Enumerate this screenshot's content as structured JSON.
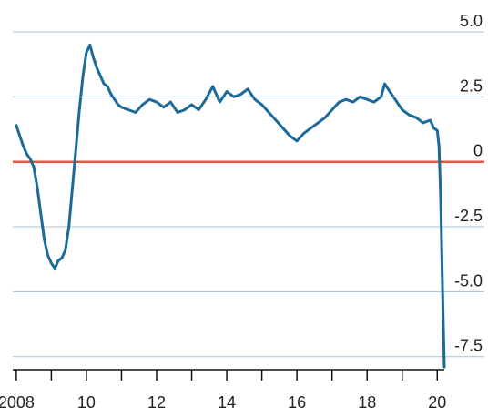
{
  "chart_data": {
    "type": "line",
    "title": "",
    "xlabel": "",
    "ylabel": "",
    "xlim": [
      2007.9,
      2020.2
    ],
    "ylim": [
      -8.0,
      5.0
    ],
    "grid": true,
    "legend": "none",
    "x_tick_labels": [
      {
        "x": 2008,
        "label": "2008"
      },
      {
        "x": 2010,
        "label": "10"
      },
      {
        "x": 2012,
        "label": "12"
      },
      {
        "x": 2014,
        "label": "14"
      },
      {
        "x": 2016,
        "label": "16"
      },
      {
        "x": 2018,
        "label": "18"
      },
      {
        "x": 2020,
        "label": "20"
      }
    ],
    "y_tick_labels": [
      {
        "y": 5.0,
        "label": "5.0"
      },
      {
        "y": 2.5,
        "label": "2.5"
      },
      {
        "y": 0,
        "label": "0"
      },
      {
        "y": -2.5,
        "label": "-2.5"
      },
      {
        "y": -5.0,
        "label": "-5.0"
      },
      {
        "y": -7.5,
        "label": "-7.5"
      }
    ],
    "reference_line": {
      "y": 0,
      "color": "#e8543f"
    },
    "series": [
      {
        "color": "#1b6a99",
        "points": [
          [
            2008.0,
            1.4
          ],
          [
            2008.1,
            1.0
          ],
          [
            2008.2,
            0.6
          ],
          [
            2008.3,
            0.3
          ],
          [
            2008.4,
            0.1
          ],
          [
            2008.5,
            -0.2
          ],
          [
            2008.6,
            -1.0
          ],
          [
            2008.7,
            -2.0
          ],
          [
            2008.8,
            -3.0
          ],
          [
            2008.9,
            -3.6
          ],
          [
            2009.0,
            -3.9
          ],
          [
            2009.1,
            -4.1
          ],
          [
            2009.2,
            -3.8
          ],
          [
            2009.3,
            -3.7
          ],
          [
            2009.4,
            -3.4
          ],
          [
            2009.5,
            -2.5
          ],
          [
            2009.6,
            -1.0
          ],
          [
            2009.7,
            0.5
          ],
          [
            2009.8,
            2.0
          ],
          [
            2009.9,
            3.3
          ],
          [
            2010.0,
            4.2
          ],
          [
            2010.1,
            4.5
          ],
          [
            2010.2,
            4.0
          ],
          [
            2010.3,
            3.6
          ],
          [
            2010.4,
            3.3
          ],
          [
            2010.5,
            3.0
          ],
          [
            2010.6,
            2.9
          ],
          [
            2010.7,
            2.6
          ],
          [
            2010.8,
            2.4
          ],
          [
            2010.9,
            2.2
          ],
          [
            2011.0,
            2.1
          ],
          [
            2011.2,
            2.0
          ],
          [
            2011.4,
            1.9
          ],
          [
            2011.6,
            2.2
          ],
          [
            2011.8,
            2.4
          ],
          [
            2012.0,
            2.3
          ],
          [
            2012.2,
            2.1
          ],
          [
            2012.4,
            2.3
          ],
          [
            2012.6,
            1.9
          ],
          [
            2012.8,
            2.0
          ],
          [
            2013.0,
            2.2
          ],
          [
            2013.2,
            2.0
          ],
          [
            2013.4,
            2.4
          ],
          [
            2013.6,
            2.9
          ],
          [
            2013.8,
            2.3
          ],
          [
            2014.0,
            2.7
          ],
          [
            2014.2,
            2.5
          ],
          [
            2014.4,
            2.6
          ],
          [
            2014.6,
            2.8
          ],
          [
            2014.8,
            2.4
          ],
          [
            2015.0,
            2.2
          ],
          [
            2015.2,
            1.9
          ],
          [
            2015.4,
            1.6
          ],
          [
            2015.6,
            1.3
          ],
          [
            2015.8,
            1.0
          ],
          [
            2016.0,
            0.8
          ],
          [
            2016.2,
            1.1
          ],
          [
            2016.4,
            1.3
          ],
          [
            2016.6,
            1.5
          ],
          [
            2016.8,
            1.7
          ],
          [
            2017.0,
            2.0
          ],
          [
            2017.2,
            2.3
          ],
          [
            2017.4,
            2.4
          ],
          [
            2017.6,
            2.3
          ],
          [
            2017.8,
            2.5
          ],
          [
            2018.0,
            2.4
          ],
          [
            2018.2,
            2.3
          ],
          [
            2018.4,
            2.5
          ],
          [
            2018.5,
            3.0
          ],
          [
            2018.6,
            2.8
          ],
          [
            2018.8,
            2.4
          ],
          [
            2019.0,
            2.0
          ],
          [
            2019.2,
            1.8
          ],
          [
            2019.4,
            1.7
          ],
          [
            2019.6,
            1.5
          ],
          [
            2019.8,
            1.6
          ],
          [
            2019.9,
            1.3
          ],
          [
            2020.0,
            1.2
          ],
          [
            2020.05,
            0.6
          ],
          [
            2020.1,
            -1.5
          ],
          [
            2020.15,
            -5.0
          ],
          [
            2020.2,
            -7.9
          ]
        ]
      }
    ],
    "colors": {
      "line": "#1b6a99",
      "zero_line": "#e8543f",
      "grid": "#a9bfd1",
      "axis": "#111111",
      "text": "#222222"
    }
  }
}
